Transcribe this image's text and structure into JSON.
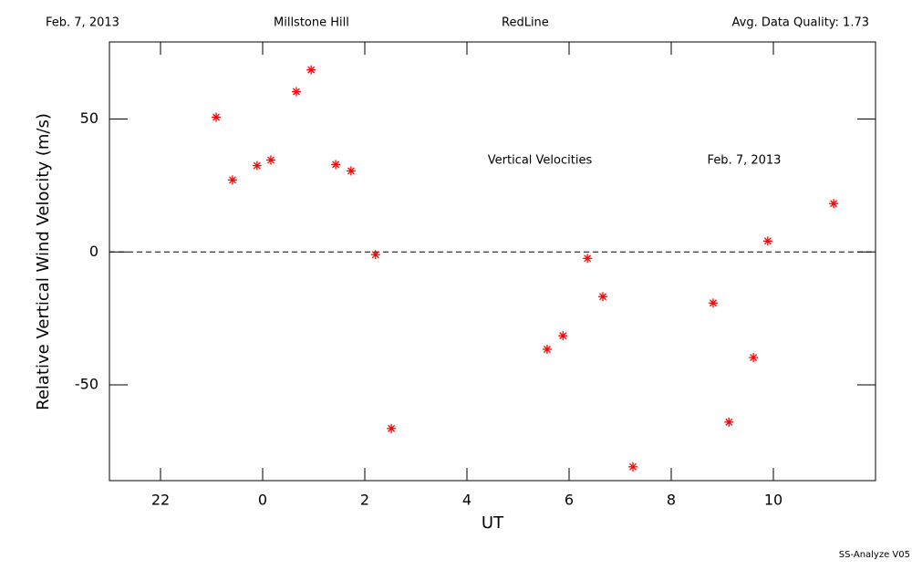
{
  "chart_data": {
    "type": "scatter",
    "header": [
      "Feb. 7, 2013",
      "Millstone Hill",
      "RedLine",
      "Avg. Data Quality: 1.73"
    ],
    "annotations": [
      "Vertical Velocities",
      "Feb. 7, 2013"
    ],
    "footer": "SS-Analyze V05",
    "x_label": "UT",
    "y_label": "Relative Vertical Wind Velocity (m/s)",
    "xlim": [
      -3,
      12
    ],
    "xticks": [
      {
        "value": -2,
        "label": "22"
      },
      0,
      2,
      4,
      6,
      8,
      10
    ],
    "ylim": [
      -86,
      79
    ],
    "yticks": [
      -50,
      0,
      50
    ],
    "hline": 0,
    "series": [
      {
        "name": "Vertical Velocities",
        "color": "#ff0000",
        "x": [
          -0.91,
          -0.59,
          -0.11,
          0.16,
          0.66,
          0.95,
          1.43,
          1.73,
          2.21,
          2.52,
          5.57,
          5.88,
          6.36,
          6.66,
          7.25,
          8.82,
          9.13,
          9.61,
          9.89,
          11.18
        ],
        "values": [
          50.7,
          27.1,
          32.5,
          34.6,
          60.3,
          68.5,
          32.9,
          30.5,
          -1.0,
          -66.4,
          -36.6,
          -31.5,
          -2.4,
          -16.8,
          -80.8,
          -19.2,
          -64.0,
          -39.7,
          4.1,
          18.2
        ]
      }
    ]
  }
}
